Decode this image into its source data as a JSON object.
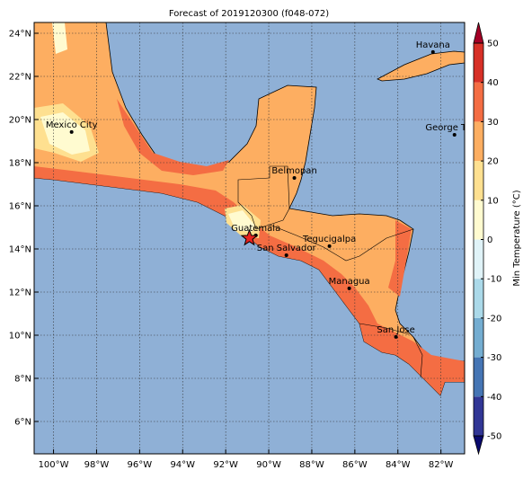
{
  "title": "Forecast of 2019120300 (f048-072)",
  "lon_range": [
    -100.9,
    -80.9
  ],
  "lat_range": [
    4.5,
    24.5
  ],
  "lon_ticks": [
    {
      "value": -100,
      "label": "100°W"
    },
    {
      "value": -98,
      "label": "98°W"
    },
    {
      "value": -96,
      "label": "96°W"
    },
    {
      "value": -94,
      "label": "94°W"
    },
    {
      "value": -92,
      "label": "92°W"
    },
    {
      "value": -90,
      "label": "90°W"
    },
    {
      "value": -88,
      "label": "88°W"
    },
    {
      "value": -86,
      "label": "86°W"
    },
    {
      "value": -84,
      "label": "84°W"
    },
    {
      "value": -82,
      "label": "82°W"
    }
  ],
  "lat_ticks": [
    {
      "value": 6,
      "label": "6°N"
    },
    {
      "value": 8,
      "label": "8°N"
    },
    {
      "value": 10,
      "label": "10°N"
    },
    {
      "value": 12,
      "label": "12°N"
    },
    {
      "value": 14,
      "label": "14°N"
    },
    {
      "value": 16,
      "label": "16°N"
    },
    {
      "value": 18,
      "label": "18°N"
    },
    {
      "value": 20,
      "label": "20°N"
    },
    {
      "value": 22,
      "label": "22°N"
    },
    {
      "value": 24,
      "label": "24°N"
    }
  ],
  "cities": [
    {
      "name": "Havana",
      "lon": -82.37,
      "lat": 23.13
    },
    {
      "name": "George Town",
      "lon": -81.37,
      "lat": 19.29
    },
    {
      "name": "Mexico City",
      "lon": -99.16,
      "lat": 19.42
    },
    {
      "name": "Belmopan",
      "lon": -88.81,
      "lat": 17.29
    },
    {
      "name": "Guatemala",
      "lon": -90.6,
      "lat": 14.63
    },
    {
      "name": "San Salvador",
      "lon": -89.18,
      "lat": 13.71
    },
    {
      "name": "Tegucigalpa",
      "lon": -87.18,
      "lat": 14.13
    },
    {
      "name": "Managua",
      "lon": -86.26,
      "lat": 12.17
    },
    {
      "name": "San Jose",
      "lon": -84.09,
      "lat": 9.92
    }
  ],
  "marker": {
    "lon": -90.9,
    "lat": 14.5,
    "color": "#e8231f"
  },
  "colorbar": {
    "label": "Min Temperature (°C)",
    "lim": [
      -50,
      50
    ],
    "ticks": [
      -50,
      -40,
      -30,
      -20,
      -10,
      0,
      10,
      20,
      30,
      40,
      50
    ],
    "colors": [
      "#313695",
      "#4575b4",
      "#74add1",
      "#abd9e9",
      "#e0f3f8",
      "#fffbd0",
      "#fee090",
      "#fdae61",
      "#f46d43",
      "#d73027"
    ],
    "under_color": "#0a0a6e",
    "over_color": "#a50026"
  }
}
